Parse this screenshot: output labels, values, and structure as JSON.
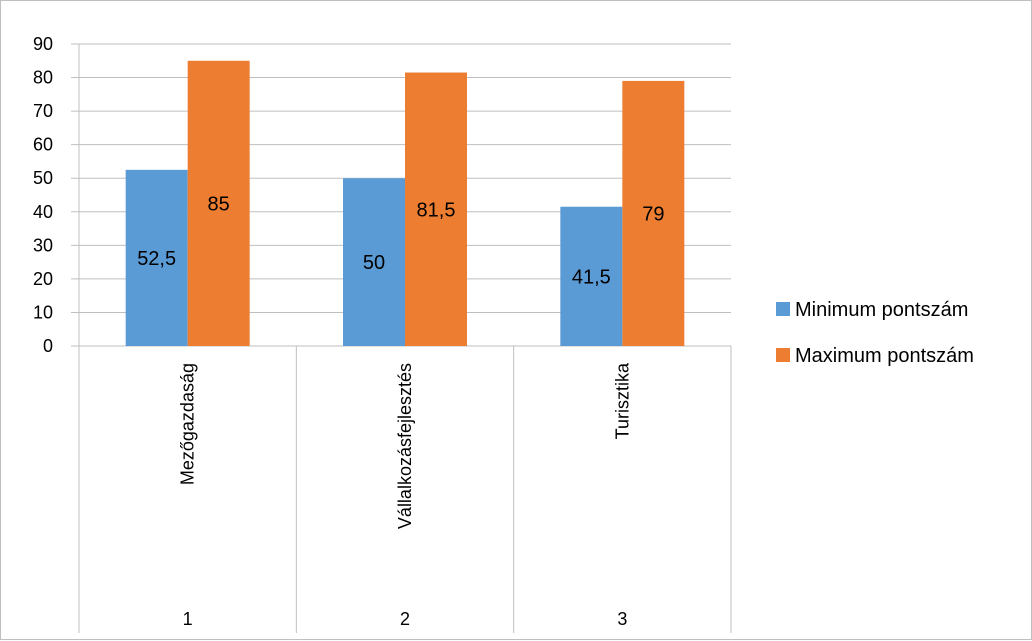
{
  "chart_data": {
    "type": "bar",
    "title": "",
    "xlabel": "",
    "ylabel": "",
    "ylim": [
      0,
      90
    ],
    "yticks": [
      0,
      10,
      20,
      30,
      40,
      50,
      60,
      70,
      80,
      90
    ],
    "grid": true,
    "legend_position": "right",
    "categories": [
      "Mezőgazdaság",
      "Vállalkozásfejlesztés",
      "Turisztika"
    ],
    "category_numbers": [
      "1",
      "2",
      "3"
    ],
    "series": [
      {
        "name": "Minimum pontszám",
        "color": "#5b9bd5",
        "values": [
          52.5,
          50,
          41.5
        ],
        "labels": [
          "52,5",
          "50",
          "41,5"
        ]
      },
      {
        "name": "Maximum pontszám",
        "color": "#ed7d31",
        "values": [
          85,
          81.5,
          79
        ],
        "labels": [
          "85",
          "81,5",
          "79"
        ]
      }
    ]
  }
}
